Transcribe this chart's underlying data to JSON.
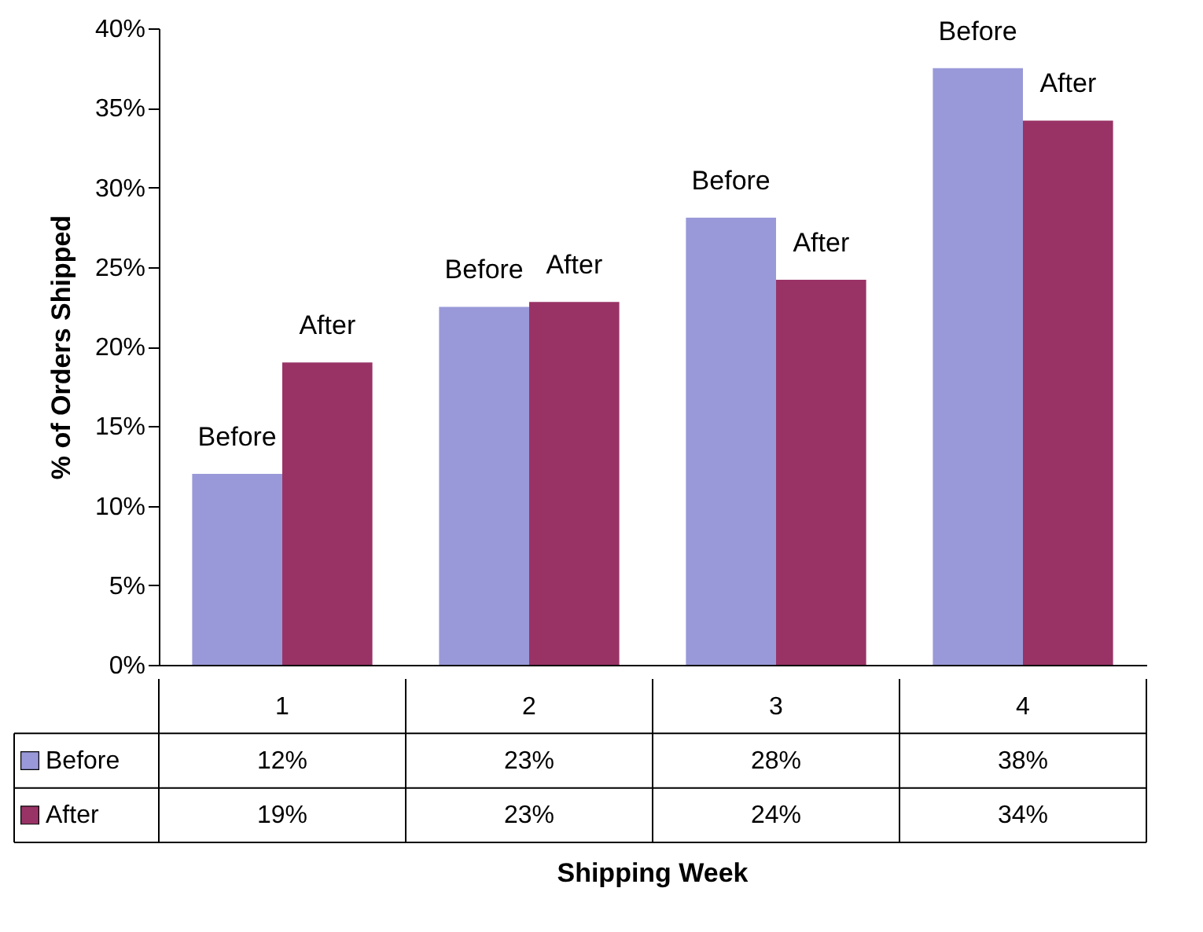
{
  "chart_data": {
    "type": "bar",
    "ylabel": "% of Orders Shipped",
    "annotations": [
      "Shipping Week"
    ],
    "categories": [
      "1",
      "2",
      "3",
      "4"
    ],
    "series": [
      {
        "name": "Before",
        "color": "#9999d9",
        "values": [
          12,
          22.5,
          28.1,
          37.5
        ],
        "value_labels": [
          "12%",
          "23%",
          "28%",
          "38%"
        ]
      },
      {
        "name": "After",
        "color": "#993366",
        "values": [
          19,
          22.8,
          24.2,
          34.2
        ],
        "value_labels": [
          "19%",
          "23%",
          "24%",
          "34%"
        ]
      }
    ],
    "ylim": [
      0,
      40
    ],
    "yticks": [
      {
        "value": 0,
        "label": "0%"
      },
      {
        "value": 5,
        "label": "5%"
      },
      {
        "value": 10,
        "label": "10%"
      },
      {
        "value": 15,
        "label": "15%"
      },
      {
        "value": 20,
        "label": "20%"
      },
      {
        "value": 25,
        "label": "25%"
      },
      {
        "value": 30,
        "label": "30%"
      },
      {
        "value": 35,
        "label": "35%"
      },
      {
        "value": 40,
        "label": "40%"
      }
    ],
    "grid": false,
    "legend": "bottom"
  }
}
